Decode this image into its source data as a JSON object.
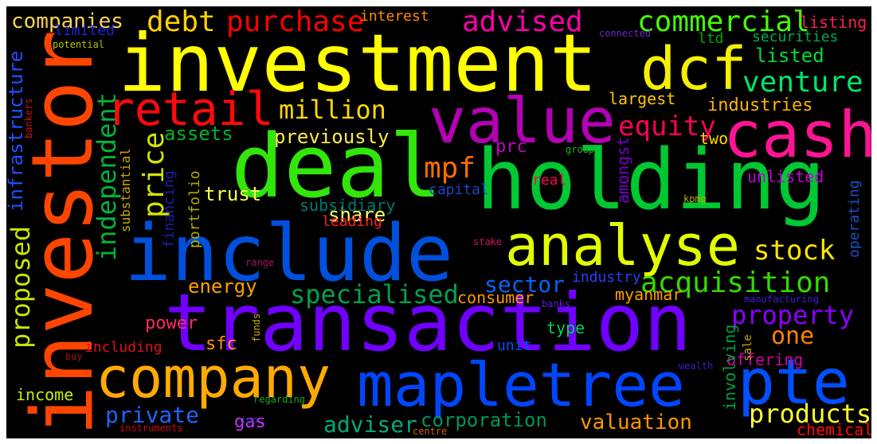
{
  "words": [
    {
      "text": "investment",
      "color": "#ffff00"
    },
    {
      "text": "investor",
      "color": "#ff4500"
    },
    {
      "text": "holding",
      "color": "#00c832"
    },
    {
      "text": "transaction",
      "color": "#7000ff"
    },
    {
      "text": "include",
      "color": "#0050dc"
    },
    {
      "text": "deal",
      "color": "#32e60a"
    },
    {
      "text": "dcf",
      "color": "#f5f000"
    },
    {
      "text": "value",
      "color": "#b400b4"
    },
    {
      "text": "cash",
      "color": "#ff1493"
    },
    {
      "text": "mapletree",
      "color": "#0046ff"
    },
    {
      "text": "company",
      "color": "#ffaa00"
    },
    {
      "text": "analyse",
      "color": "#e1ff00"
    },
    {
      "text": "pte",
      "color": "#0050ff"
    },
    {
      "text": "retail",
      "color": "#ff0a0a"
    },
    {
      "text": "acquisition",
      "color": "#32dc00"
    },
    {
      "text": "venture",
      "color": "#00e664"
    },
    {
      "text": "commercial",
      "color": "#46ff00"
    },
    {
      "text": "purchase",
      "color": "#ff0000"
    },
    {
      "text": "advised",
      "color": "#ff00aa"
    },
    {
      "text": "debt",
      "color": "#ffd200"
    },
    {
      "text": "million",
      "color": "#ffd700"
    },
    {
      "text": "equity",
      "color": "#ff005a"
    },
    {
      "text": "price",
      "color": "#d2e600"
    },
    {
      "text": "mpf",
      "color": "#ff6e00"
    },
    {
      "text": "stock",
      "color": "#ffe600"
    },
    {
      "text": "property",
      "color": "#8c00ff"
    },
    {
      "text": "specialised",
      "color": "#00a050"
    },
    {
      "text": "products",
      "color": "#ffff32"
    },
    {
      "text": "valuation",
      "color": "#ff9600"
    },
    {
      "text": "independent",
      "color": "#00b43c"
    },
    {
      "text": "proposed",
      "color": "#c8e600"
    },
    {
      "text": "infrastructure",
      "color": "#1e50ff"
    },
    {
      "text": "companies",
      "color": "#ffd25a"
    },
    {
      "text": "sector",
      "color": "#0064ff"
    },
    {
      "text": "private",
      "color": "#1e64ff"
    },
    {
      "text": "adviser",
      "color": "#00aa78"
    },
    {
      "text": "corporation",
      "color": "#00965a"
    },
    {
      "text": "one",
      "color": "#ff8200"
    },
    {
      "text": "industries",
      "color": "#ffb400"
    },
    {
      "text": "listed",
      "color": "#00dc3c"
    },
    {
      "text": "assets",
      "color": "#00b428"
    },
    {
      "text": "previously",
      "color": "#ffeb50"
    },
    {
      "text": "energy",
      "color": "#ffa000"
    },
    {
      "text": "share",
      "color": "#ffff64"
    },
    {
      "text": "trust",
      "color": "#ffff50"
    },
    {
      "text": "subsidiary",
      "color": "#00786e"
    },
    {
      "text": "leading",
      "color": "#ff1e1e"
    },
    {
      "text": "gas",
      "color": "#c832ff"
    },
    {
      "text": "income",
      "color": "#c8f000"
    },
    {
      "text": "financing",
      "color": "#1e1eaa"
    },
    {
      "text": "portfolio",
      "color": "#b4aa00"
    },
    {
      "text": "substantial",
      "color": "#c8aa00"
    },
    {
      "text": "power",
      "color": "#ff2864"
    },
    {
      "text": "sfc",
      "color": "#ff9600"
    },
    {
      "text": "including",
      "color": "#dc1414"
    },
    {
      "text": "industry",
      "color": "#2840ff"
    },
    {
      "text": "consumer",
      "color": "#ff9600"
    },
    {
      "text": "myanmar",
      "color": "#ffa000"
    },
    {
      "text": "unit",
      "color": "#0050ff"
    },
    {
      "text": "type",
      "color": "#00d25a"
    },
    {
      "text": "offering",
      "color": "#d200aa"
    },
    {
      "text": "involving",
      "color": "#00a03c"
    },
    {
      "text": "operating",
      "color": "#1e50c8"
    },
    {
      "text": "unlisted",
      "color": "#c800dc"
    },
    {
      "text": "amongst",
      "color": "#7800d2"
    },
    {
      "text": "real",
      "color": "#ff0050"
    },
    {
      "text": "capital",
      "color": "#1e46c8"
    },
    {
      "text": "prc",
      "color": "#c800c8"
    },
    {
      "text": "two",
      "color": "#ffd700"
    },
    {
      "text": "largest",
      "color": "#ffc800"
    },
    {
      "text": "interest",
      "color": "#ff8c00"
    },
    {
      "text": "limited",
      "color": "#1e1ee6"
    },
    {
      "text": "ltd",
      "color": "#00aa00"
    },
    {
      "text": "securities",
      "color": "#00aa50"
    },
    {
      "text": "listing",
      "color": "#ff1e50"
    },
    {
      "text": "connected",
      "color": "#6e28c8"
    },
    {
      "text": "potential",
      "color": "#b4c800"
    },
    {
      "text": "bankers",
      "color": "#c81414"
    },
    {
      "text": "group",
      "color": "#28aa28"
    },
    {
      "text": "kpmg",
      "color": "#b4b400"
    },
    {
      "text": "stake",
      "color": "#d21464"
    },
    {
      "text": "range",
      "color": "#aa1464"
    },
    {
      "text": "banks",
      "color": "#5a1edc"
    },
    {
      "text": "manufacturing",
      "color": "#3c1edc"
    },
    {
      "text": "funds",
      "color": "#c8b400"
    },
    {
      "text": "sale",
      "color": "#c8aa00"
    },
    {
      "text": "chemical",
      "color": "#ff0a0a"
    },
    {
      "text": "wealth",
      "color": "#3c1ebe"
    },
    {
      "text": "regarding",
      "color": "#14aa14"
    },
    {
      "text": "buy",
      "color": "#aa1414"
    },
    {
      "text": "ipo",
      "color": "#3c32aa"
    },
    {
      "text": "instruments",
      "color": "#c80a0a"
    },
    {
      "text": "centre",
      "color": "#c86400"
    }
  ]
}
